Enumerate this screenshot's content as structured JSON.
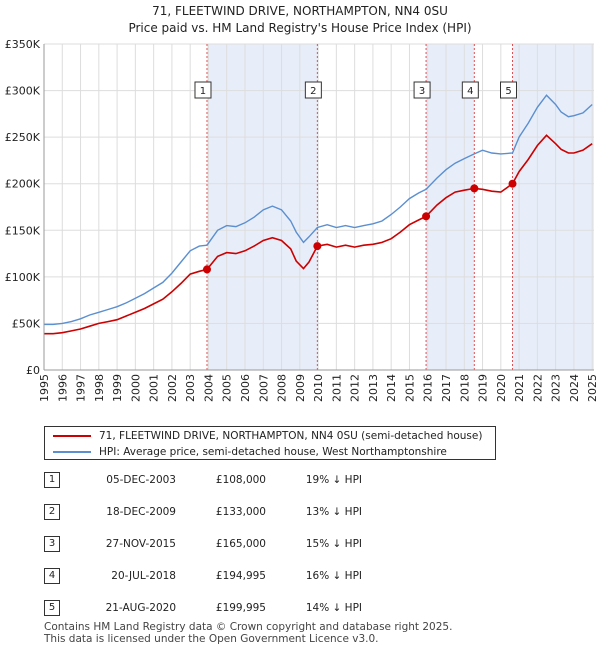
{
  "chart_data": {
    "type": "line",
    "title": "71, FLEETWIND DRIVE, NORTHAMPTON, NN4 0SU",
    "subtitle": "Price paid vs. HM Land Registry's House Price Index (HPI)",
    "xlabel": "",
    "ylabel": "",
    "xlim": [
      1995,
      2025.1
    ],
    "ylim": [
      0,
      350000
    ],
    "y_ticks": [
      0,
      50000,
      100000,
      150000,
      200000,
      250000,
      300000,
      350000
    ],
    "y_tick_labels": [
      "£0",
      "£50K",
      "£100K",
      "£150K",
      "£200K",
      "£250K",
      "£300K",
      "£350K"
    ],
    "x_ticks": [
      1995,
      1996,
      1997,
      1998,
      1999,
      2000,
      2001,
      2002,
      2003,
      2004,
      2005,
      2006,
      2007,
      2008,
      2009,
      2010,
      2011,
      2012,
      2013,
      2014,
      2015,
      2016,
      2017,
      2018,
      2019,
      2020,
      2021,
      2022,
      2023,
      2024,
      2025
    ],
    "x_tick_labels": [
      "1995",
      "1996",
      "1997",
      "1998",
      "1999",
      "2000",
      "2001",
      "2002",
      "2003",
      "2004",
      "2005",
      "2006",
      "2007",
      "2008",
      "2009",
      "2010",
      "2011",
      "2012",
      "2013",
      "2014",
      "2015",
      "2016",
      "2017",
      "2018",
      "2019",
      "2020",
      "2021",
      "2022",
      "2023",
      "2024",
      "2025"
    ],
    "grid": true,
    "shaded_ranges": [
      [
        2003.92,
        2009.96
      ],
      [
        2015.91,
        2018.55
      ],
      [
        2020.64,
        2025.1
      ]
    ],
    "colors": {
      "property": "#cc0000",
      "hpi": "#5b8fd0",
      "shade": "#e8eef9",
      "marker_line": "#e05050"
    },
    "series": [
      {
        "name": "HPI: Average price, semi-detached house, West Northamptonshire",
        "x": [
          1995,
          1995.5,
          1996,
          1996.5,
          1997,
          1997.5,
          1998,
          1998.5,
          1999,
          1999.5,
          2000,
          2000.5,
          2001,
          2001.5,
          2002,
          2002.5,
          2003,
          2003.5,
          2003.92,
          2004.5,
          2005,
          2005.5,
          2006,
          2006.5,
          2007,
          2007.5,
          2008,
          2008.5,
          2008.8,
          2009.2,
          2009.5,
          2009.96,
          2010.5,
          2011,
          2011.5,
          2012,
          2012.5,
          2013,
          2013.5,
          2014,
          2014.5,
          2015,
          2015.5,
          2015.91,
          2016.5,
          2017,
          2017.5,
          2018,
          2018.55,
          2019,
          2019.5,
          2020,
          2020.64,
          2021,
          2021.5,
          2022,
          2022.5,
          2023,
          2023.3,
          2023.7,
          2024,
          2024.5,
          2025
        ],
        "values": [
          49000,
          49000,
          50000,
          52000,
          55000,
          59000,
          62000,
          65000,
          68000,
          72000,
          77000,
          82000,
          88000,
          94000,
          104000,
          116000,
          128000,
          133000,
          134000,
          150000,
          155000,
          154000,
          158000,
          164000,
          172000,
          176000,
          172000,
          160000,
          148000,
          137000,
          143000,
          153000,
          156000,
          153000,
          155000,
          153000,
          155000,
          157000,
          160000,
          167000,
          175000,
          184000,
          190000,
          194000,
          206000,
          215000,
          222000,
          227000,
          232000,
          236000,
          233000,
          232000,
          233000,
          250000,
          265000,
          282000,
          295000,
          285000,
          277000,
          272000,
          273000,
          276000,
          285000
        ]
      },
      {
        "name": "71, FLEETWIND DRIVE, NORTHAMPTON, NN4 0SU (semi-detached house)",
        "x": [
          1995,
          1995.5,
          1996,
          1996.5,
          1997,
          1997.5,
          1998,
          1998.5,
          1999,
          1999.5,
          2000,
          2000.5,
          2001,
          2001.5,
          2002,
          2002.5,
          2003,
          2003.5,
          2003.92,
          2004.5,
          2005,
          2005.5,
          2006,
          2006.5,
          2007,
          2007.5,
          2008,
          2008.5,
          2008.8,
          2009.2,
          2009.5,
          2009.96,
          2010.5,
          2011,
          2011.5,
          2012,
          2012.5,
          2013,
          2013.5,
          2014,
          2014.5,
          2015,
          2015.5,
          2015.91,
          2016.5,
          2017,
          2017.5,
          2018,
          2018.55,
          2019,
          2019.5,
          2020,
          2020.64,
          2021,
          2021.5,
          2022,
          2022.5,
          2023,
          2023.3,
          2023.7,
          2024,
          2024.5,
          2025
        ],
        "values": [
          39000,
          39000,
          40000,
          42000,
          44000,
          47000,
          50000,
          52000,
          54000,
          58000,
          62000,
          66000,
          71000,
          76000,
          84000,
          93000,
          103000,
          106000,
          108000,
          122000,
          126000,
          125000,
          128000,
          133000,
          139000,
          142000,
          139000,
          130000,
          117000,
          109000,
          116000,
          133000,
          135000,
          132000,
          134000,
          132000,
          134000,
          135000,
          137000,
          141000,
          148000,
          156000,
          161000,
          165000,
          177000,
          185000,
          191000,
          193000,
          194995,
          194000,
          192000,
          191000,
          199995,
          213000,
          226000,
          241000,
          252000,
          243000,
          237000,
          233000,
          233000,
          236000,
          243000
        ]
      }
    ],
    "sales": [
      {
        "id": "1",
        "date": "05-DEC-2003",
        "year": 2003.92,
        "price": 108000,
        "price_label": "£108,000",
        "hpi_delta": "19% ↓ HPI"
      },
      {
        "id": "2",
        "date": "18-DEC-2009",
        "year": 2009.96,
        "price": 133000,
        "price_label": "£133,000",
        "hpi_delta": "13% ↓ HPI"
      },
      {
        "id": "3",
        "date": "27-NOV-2015",
        "year": 2015.91,
        "price": 165000,
        "price_label": "£165,000",
        "hpi_delta": "15% ↓ HPI"
      },
      {
        "id": "4",
        "date": "20-JUL-2018",
        "year": 2018.55,
        "price": 194995,
        "price_label": "£194,995",
        "hpi_delta": "16% ↓ HPI"
      },
      {
        "id": "5",
        "date": "21-AUG-2020",
        "year": 2020.64,
        "price": 199995,
        "price_label": "£199,995",
        "hpi_delta": "14% ↓ HPI"
      }
    ],
    "legend_position": "below-plot"
  },
  "legend": {
    "property_label": "71, FLEETWIND DRIVE, NORTHAMPTON, NN4 0SU (semi-detached house)",
    "hpi_label": "HPI: Average price, semi-detached house, West Northamptonshire"
  },
  "footer": {
    "line1": "Contains HM Land Registry data © Crown copyright and database right 2025.",
    "line2": "This data is licensed under the Open Government Licence v3.0."
  }
}
